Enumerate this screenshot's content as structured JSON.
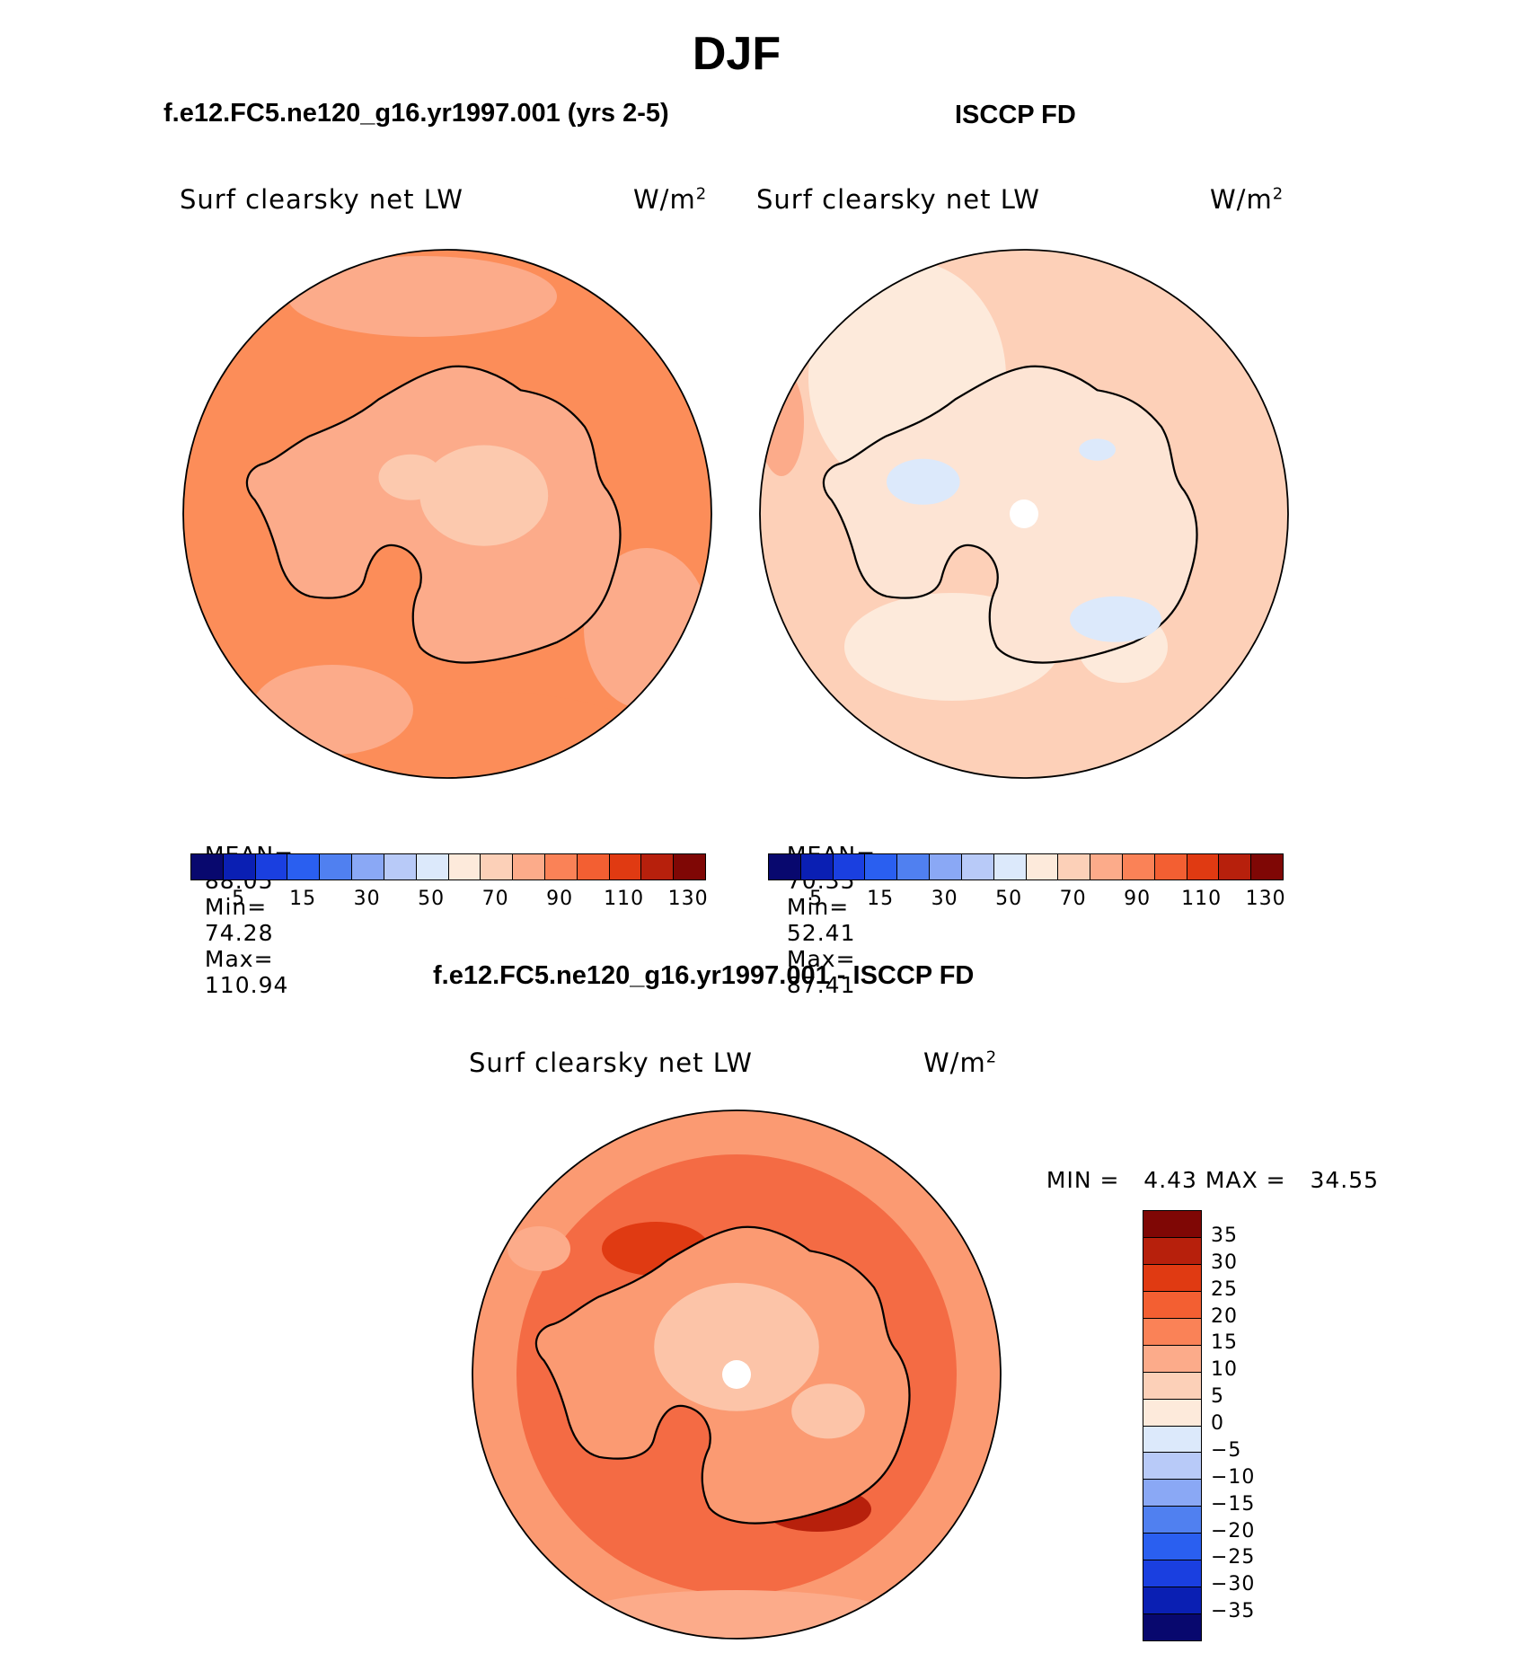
{
  "title": "DJF",
  "panels": [
    {
      "id": "model",
      "case_title": "f.e12.FC5.ne120_g16.yr1997.001 (yrs 2-5)",
      "variable": "Surf clearsky net LW",
      "units": "W/m",
      "units_sup": "2",
      "stats": {
        "mean_label": "MEAN=",
        "mean": "88.05",
        "min_label": "Min=",
        "min": "74.28",
        "max_label": "Max=",
        "max": "110.94"
      },
      "ocean_color": "#fc8d59",
      "land_color": "#fdae91",
      "interior_color": "#fcc9ae"
    },
    {
      "id": "obs",
      "case_title": "ISCCP FD",
      "variable": "Surf clearsky net LW",
      "units": "W/m",
      "units_sup": "2",
      "stats": {
        "mean_label": "MEAN=",
        "mean": "70.35",
        "min_label": "Min=",
        "min": "52.41",
        "max_label": "Max=",
        "max": "87.41"
      },
      "ocean_color": "#fdd0b8",
      "land_color": "#feeadc",
      "interior_color": "#fde4d4"
    }
  ],
  "diff_panel": {
    "case_title": "f.e12.FC5.ne120_g16.yr1997.001 - ISCCP FD",
    "variable": "Surf clearsky net LW",
    "units": "W/m",
    "units_sup": "2",
    "min_label": "MIN =",
    "min": "4.43",
    "max_label": "MAX =",
    "max": "34.55",
    "ocean_color": "#f46b44",
    "rim_color": "#fb9a72",
    "land_color": "#fdae91",
    "interior_color": "#fcc4a8"
  },
  "colorbar_horizontal": {
    "colors": [
      "#08086e",
      "#0a1fb3",
      "#1a3fe0",
      "#2a5ff0",
      "#5080f0",
      "#8aa8f5",
      "#b8caf8",
      "#dce9fb",
      "#fdeadb",
      "#fcd0b8",
      "#fcab8a",
      "#fa8257",
      "#f35f32",
      "#e03a12",
      "#b7200c",
      "#7f0705"
    ],
    "labels": [
      "5",
      "15",
      "30",
      "50",
      "70",
      "90",
      "110",
      "130"
    ]
  },
  "colorbar_vertical": {
    "colors": [
      "#7f0705",
      "#b7200c",
      "#e03a12",
      "#f35f32",
      "#fa8257",
      "#fcab8a",
      "#fcd0b8",
      "#fdeadb",
      "#dce9fb",
      "#b8caf8",
      "#8aa8f5",
      "#5080f0",
      "#2a5ff0",
      "#1a3fe0",
      "#0a1fb3",
      "#08086e"
    ],
    "labels": [
      "35",
      "30",
      "25",
      "20",
      "15",
      "10",
      "5",
      "0",
      "−5",
      "−10",
      "−15",
      "−20",
      "−25",
      "−30",
      "−35"
    ]
  }
}
